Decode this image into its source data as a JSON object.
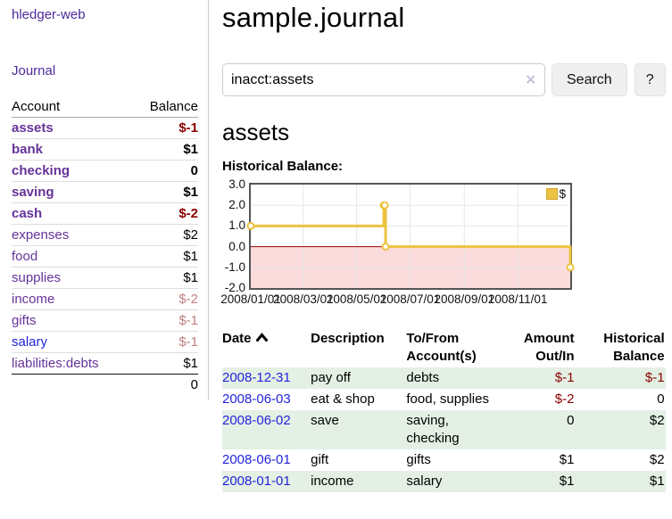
{
  "app": {
    "brand": "hledger-web",
    "nav_journal": "Journal"
  },
  "sidebar": {
    "headers": {
      "account": "Account",
      "balance": "Balance"
    },
    "accounts": [
      {
        "name": "assets",
        "balance": "$-1",
        "depth": 1,
        "selected": true,
        "amount_class": "neg-strong",
        "link_style": "purple"
      },
      {
        "name": "bank",
        "balance": "$1",
        "depth": 2,
        "selected": true,
        "amount_class": "",
        "link_style": "purple"
      },
      {
        "name": "checking",
        "balance": "0",
        "depth": 3,
        "selected": true,
        "amount_class": "",
        "link_style": "purple"
      },
      {
        "name": "saving",
        "balance": "$1",
        "depth": 3,
        "selected": true,
        "amount_class": "",
        "link_style": "purple"
      },
      {
        "name": "cash",
        "balance": "$-2",
        "depth": 2,
        "selected": true,
        "amount_class": "neg-strong",
        "link_style": "purple"
      },
      {
        "name": "expenses",
        "balance": "$2",
        "depth": 1,
        "selected": false,
        "amount_class": "",
        "link_style": "purple"
      },
      {
        "name": "food",
        "balance": "$1",
        "depth": 2,
        "selected": false,
        "amount_class": "",
        "link_style": "purple"
      },
      {
        "name": "supplies",
        "balance": "$1",
        "depth": 2,
        "selected": false,
        "amount_class": "",
        "link_style": "purple"
      },
      {
        "name": "income",
        "balance": "$-2",
        "depth": 1,
        "selected": false,
        "amount_class": "neg-faded",
        "link_style": "purple"
      },
      {
        "name": "gifts",
        "balance": "$-1",
        "depth": 2,
        "selected": false,
        "amount_class": "neg-faded",
        "link_style": "purple"
      },
      {
        "name": "salary",
        "balance": "$-1",
        "depth": 2,
        "selected": false,
        "amount_class": "neg-faded",
        "link_style": "blue"
      },
      {
        "name": "liabilities:debts",
        "balance": "$1",
        "depth": 1,
        "selected": false,
        "amount_class": "",
        "link_style": "purple"
      }
    ],
    "total": "0"
  },
  "main": {
    "title": "sample.journal",
    "search": {
      "value": "inacct:assets",
      "clear_icon": "✕",
      "button": "Search",
      "help_button": "?"
    },
    "section_title": "assets"
  },
  "chart_data": {
    "type": "line",
    "title": "Historical Balance:",
    "series_label": "$",
    "series": [
      {
        "name": "$",
        "color": "#edc240",
        "step": true,
        "points": [
          [
            "2008-01-01",
            1
          ],
          [
            "2008-06-01",
            2
          ],
          [
            "2008-06-02",
            2
          ],
          [
            "2008-06-03",
            0
          ],
          [
            "2008-12-31",
            -1
          ]
        ]
      }
    ],
    "x_ticks": [
      "2008/01/01",
      "2008/03/01",
      "2008/05/01",
      "2008/07/01",
      "2008/09/01",
      "2008/11/01"
    ],
    "y_ticks": [
      3.0,
      2.0,
      1.0,
      0.0,
      -1.0,
      -2.0
    ],
    "xlim": [
      "2008-01-01",
      "2008-12-31"
    ],
    "ylim": [
      -2,
      3
    ],
    "grid": true,
    "legend_position": "top-right",
    "negative_region_color": "#fbdcdc",
    "zero_line_color": "#a00000",
    "gridline_color": "#e6e6e6"
  },
  "register": {
    "headers": [
      "Date",
      "Description",
      "To/From Account(s)",
      "Amount Out/In",
      "Historical Balance"
    ],
    "sort_icon": "chevron-up",
    "rows": [
      {
        "date": "2008-12-31",
        "description": "pay off",
        "accounts": "debts",
        "amount": "$-1",
        "amount_neg": true,
        "balance": "$-1",
        "balance_neg": true
      },
      {
        "date": "2008-06-03",
        "description": "eat & shop",
        "accounts": "food, supplies",
        "amount": "$-2",
        "amount_neg": true,
        "balance": "0",
        "balance_neg": false
      },
      {
        "date": "2008-06-02",
        "description": "save",
        "accounts": "saving, checking",
        "amount": "0",
        "amount_neg": false,
        "balance": "$2",
        "balance_neg": false
      },
      {
        "date": "2008-06-01",
        "description": "gift",
        "accounts": "gifts",
        "amount": "$1",
        "amount_neg": false,
        "balance": "$2",
        "balance_neg": false
      },
      {
        "date": "2008-01-01",
        "description": "income",
        "accounts": "salary",
        "amount": "$1",
        "amount_neg": false,
        "balance": "$1",
        "balance_neg": false
      }
    ]
  }
}
